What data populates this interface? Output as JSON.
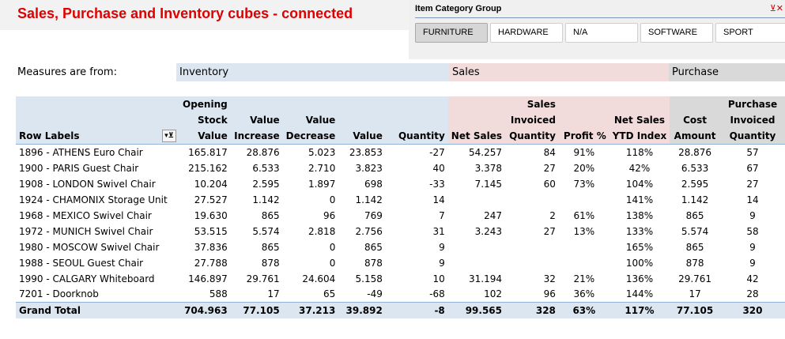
{
  "title": "Sales, Purchase and Inventory cubes - connected",
  "slicer": {
    "title": "Item Category Group",
    "clear_icon": "filter-clear-icon",
    "items": [
      {
        "label": "FURNITURE",
        "selected": true
      },
      {
        "label": "HARDWARE",
        "selected": false
      },
      {
        "label": "N/A",
        "selected": false
      },
      {
        "label": "SOFTWARE",
        "selected": false
      },
      {
        "label": "SPORT",
        "selected": false
      }
    ]
  },
  "measures": {
    "label": "Measures are from:",
    "inventory": "Inventory",
    "sales": "Sales",
    "purchase": "Purchase"
  },
  "colors": {
    "inventory": "#dce6f1",
    "sales": "#f2dcdb",
    "purchase": "#d9d9d9",
    "title": "#e00000"
  },
  "table": {
    "headers": [
      [
        "",
        "Opening",
        "",
        "",
        "",
        "",
        "",
        "Sales",
        "",
        "",
        "",
        "Purchase"
      ],
      [
        "",
        "Stock",
        "Value",
        "Value",
        "",
        "",
        "",
        "Invoiced",
        "",
        "Net Sales",
        "Cost",
        "Invoiced"
      ],
      [
        "Row Labels",
        "Value",
        "Increase",
        "Decrease",
        "Value",
        "Quantity",
        "Net Sales",
        "Quantity",
        "Profit %",
        "YTD Index",
        "Amount",
        "Quantity"
      ]
    ],
    "rows": [
      [
        "1896 - ATHENS Euro Chair",
        "165.817",
        "28.876",
        "5.023",
        "23.853",
        "-27",
        "54.257",
        "84",
        "91%",
        "118%",
        "28.876",
        "57"
      ],
      [
        "1900 - PARIS Guest Chair",
        "215.162",
        "6.533",
        "2.710",
        "3.823",
        "40",
        "3.378",
        "27",
        "20%",
        "42%",
        "6.533",
        "67"
      ],
      [
        "1908 - LONDON Swivel Chair",
        "10.204",
        "2.595",
        "1.897",
        "698",
        "-33",
        "7.145",
        "60",
        "73%",
        "104%",
        "2.595",
        "27"
      ],
      [
        "1924 - CHAMONIX Storage Unit",
        "27.527",
        "1.142",
        "0",
        "1.142",
        "14",
        "",
        "",
        "",
        "141%",
        "1.142",
        "14"
      ],
      [
        "1968 - MEXICO Swivel Chair",
        "19.630",
        "865",
        "96",
        "769",
        "7",
        "247",
        "2",
        "61%",
        "138%",
        "865",
        "9"
      ],
      [
        "1972 - MUNICH Swivel Chair",
        "53.515",
        "5.574",
        "2.818",
        "2.756",
        "31",
        "3.243",
        "27",
        "13%",
        "133%",
        "5.574",
        "58"
      ],
      [
        "1980 - MOSCOW Swivel Chair",
        "37.836",
        "865",
        "0",
        "865",
        "9",
        "",
        "",
        "",
        "165%",
        "865",
        "9"
      ],
      [
        "1988 - SEOUL Guest Chair",
        "27.788",
        "878",
        "0",
        "878",
        "9",
        "",
        "",
        "",
        "100%",
        "878",
        "9"
      ],
      [
        "1990 - CALGARY Whiteboard",
        "146.897",
        "29.761",
        "24.604",
        "5.158",
        "10",
        "31.194",
        "32",
        "21%",
        "136%",
        "29.761",
        "42"
      ],
      [
        "7201 - Doorknob",
        "588",
        "17",
        "65",
        "-49",
        "-68",
        "102",
        "96",
        "36%",
        "144%",
        "17",
        "28"
      ]
    ],
    "total": [
      "Grand Total",
      "704.963",
      "77.105",
      "37.213",
      "39.892",
      "-8",
      "99.565",
      "328",
      "63%",
      "117%",
      "77.105",
      "320"
    ]
  }
}
